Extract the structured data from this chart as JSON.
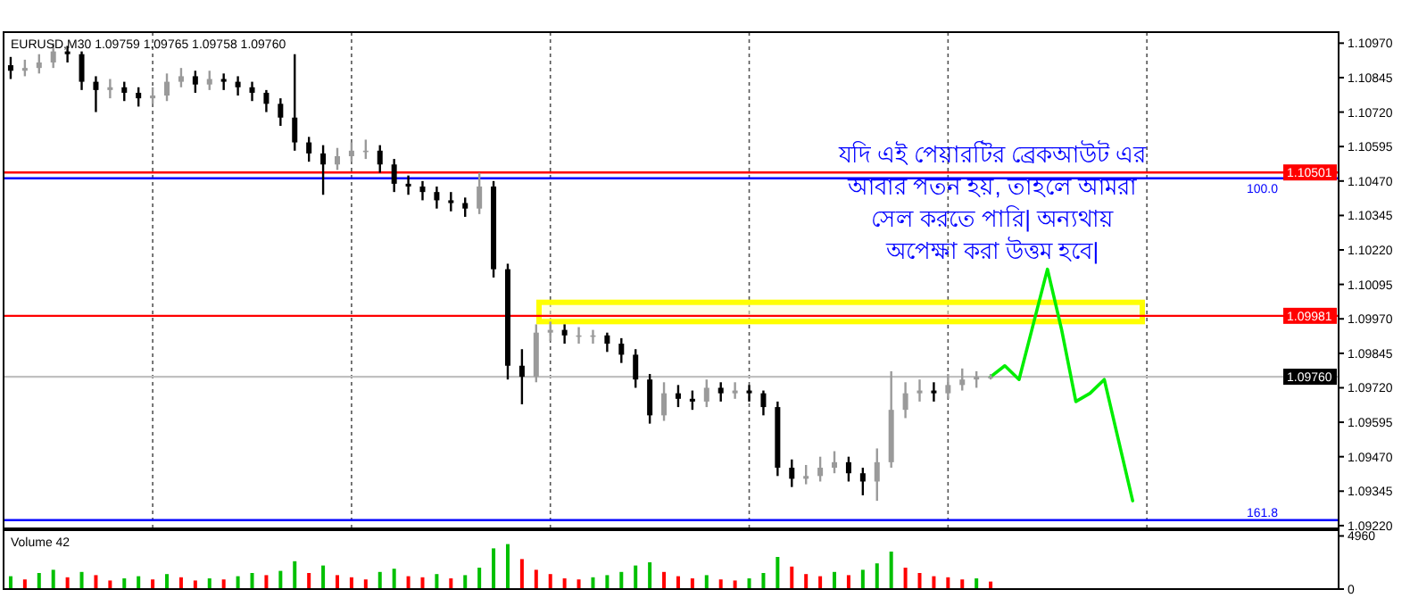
{
  "chart_data": [
    {
      "type": "candlestick",
      "title": "EURUSD,M30 1.09759 1.09765 1.09758 1.09760",
      "categories": [
        null,
        null,
        null,
        null,
        null,
        null,
        null,
        null,
        null,
        null,
        null,
        null,
        null,
        null,
        null,
        null,
        null,
        null,
        null,
        null,
        null,
        null,
        null,
        null,
        null,
        null,
        null,
        null,
        null,
        null,
        null,
        null,
        null,
        null,
        null,
        null,
        null,
        null,
        null,
        null,
        null,
        null,
        null,
        null,
        null,
        null,
        null,
        null,
        null,
        null,
        null,
        null,
        null,
        null,
        null,
        null,
        null,
        null,
        null,
        null,
        null,
        null,
        null,
        null,
        null,
        null,
        null,
        null,
        null,
        null,
        null,
        null,
        null,
        null,
        null,
        null,
        null,
        null,
        null,
        null,
        null,
        null,
        null,
        null,
        null,
        null,
        null,
        null,
        null,
        null,
        null,
        null,
        null,
        null
      ],
      "ohlc": [
        [
          1.1089,
          1.1092,
          1.1084,
          1.1087
        ],
        [
          1.1087,
          1.1091,
          1.1085,
          1.1088
        ],
        [
          1.1088,
          1.1093,
          1.1086,
          1.109
        ],
        [
          1.109,
          1.1097,
          1.1088,
          1.1094
        ],
        [
          1.1094,
          1.1096,
          1.109,
          1.1093
        ],
        [
          1.1093,
          1.1094,
          1.108,
          1.1083
        ],
        [
          1.1083,
          1.1085,
          1.1072,
          1.108
        ],
        [
          1.108,
          1.1084,
          1.1077,
          1.1081
        ],
        [
          1.1081,
          1.1083,
          1.1076,
          1.1079
        ],
        [
          1.1079,
          1.1081,
          1.1074,
          1.1077
        ],
        [
          1.1077,
          1.1081,
          1.1075,
          1.1078
        ],
        [
          1.1078,
          1.1086,
          1.1076,
          1.1083
        ],
        [
          1.1083,
          1.1088,
          1.1081,
          1.1085
        ],
        [
          1.1085,
          1.1087,
          1.1079,
          1.1082
        ],
        [
          1.1082,
          1.1087,
          1.108,
          1.1084
        ],
        [
          1.1084,
          1.1086,
          1.108,
          1.1083
        ],
        [
          1.1083,
          1.1085,
          1.1078,
          1.1081
        ],
        [
          1.1081,
          1.1083,
          1.1076,
          1.1079
        ],
        [
          1.1079,
          1.108,
          1.1072,
          1.1075
        ],
        [
          1.1075,
          1.1077,
          1.1067,
          1.107
        ],
        [
          1.107,
          1.1093,
          1.1058,
          1.1061
        ],
        [
          1.1061,
          1.1063,
          1.1054,
          1.1057
        ],
        [
          1.1057,
          1.106,
          1.1042,
          1.1053
        ],
        [
          1.1053,
          1.1059,
          1.1051,
          1.1056
        ],
        [
          1.1056,
          1.1061,
          1.1054,
          1.1058
        ],
        [
          1.1058,
          1.1062,
          1.1055,
          1.1058
        ],
        [
          1.1058,
          1.106,
          1.105,
          1.1053
        ],
        [
          1.1053,
          1.1055,
          1.1043,
          1.1046
        ],
        [
          1.1046,
          1.1049,
          1.1042,
          1.1045
        ],
        [
          1.1045,
          1.1047,
          1.104,
          1.1043
        ],
        [
          1.1043,
          1.1045,
          1.1037,
          1.104
        ],
        [
          1.104,
          1.1043,
          1.1036,
          1.1039
        ],
        [
          1.1039,
          1.1041,
          1.1034,
          1.1037
        ],
        [
          1.1037,
          1.105,
          1.1035,
          1.1045
        ],
        [
          1.1045,
          1.1047,
          1.1012,
          1.1015
        ],
        [
          1.1015,
          1.1017,
          1.0975,
          1.098
        ],
        [
          1.098,
          1.0986,
          1.0966,
          1.0976
        ],
        [
          1.0976,
          1.0995,
          1.0974,
          1.0992
        ],
        [
          1.0992,
          1.0996,
          1.0989,
          1.0993
        ],
        [
          1.0993,
          1.0995,
          1.0988,
          1.0991
        ],
        [
          1.0991,
          1.0994,
          1.0988,
          1.0991
        ],
        [
          1.0991,
          1.0993,
          1.0988,
          1.0991
        ],
        [
          1.0991,
          1.0992,
          1.0985,
          1.0988
        ],
        [
          1.0988,
          1.099,
          1.0981,
          1.0984
        ],
        [
          1.0984,
          1.0986,
          1.0972,
          1.0975
        ],
        [
          1.0975,
          1.0977,
          1.0959,
          1.0962
        ],
        [
          1.0962,
          1.0974,
          1.096,
          1.097
        ],
        [
          1.097,
          1.0973,
          1.0965,
          1.0968
        ],
        [
          1.0968,
          1.0971,
          1.0964,
          1.0967
        ],
        [
          1.0967,
          1.0975,
          1.0965,
          1.0972
        ],
        [
          1.0972,
          1.0974,
          1.0967,
          1.097
        ],
        [
          1.097,
          1.0974,
          1.0968,
          1.0971
        ],
        [
          1.0971,
          1.0973,
          1.0967,
          1.097
        ],
        [
          1.097,
          1.0971,
          1.0962,
          1.0965
        ],
        [
          1.0965,
          1.0967,
          1.094,
          1.0943
        ],
        [
          1.0943,
          1.0946,
          1.0936,
          1.0939
        ],
        [
          1.0939,
          1.0944,
          1.0937,
          1.094
        ],
        [
          1.094,
          1.0947,
          1.0938,
          1.0943
        ],
        [
          1.0943,
          1.0949,
          1.0941,
          1.0945
        ],
        [
          1.0945,
          1.0947,
          1.0938,
          1.0941
        ],
        [
          1.0941,
          1.0943,
          1.0933,
          1.0938
        ],
        [
          1.0938,
          1.095,
          1.0931,
          1.0945
        ],
        [
          1.0945,
          1.0978,
          1.0943,
          1.0964
        ],
        [
          1.0964,
          1.0974,
          1.0961,
          1.097
        ],
        [
          1.097,
          1.0975,
          1.0967,
          1.0971
        ],
        [
          1.0971,
          1.0974,
          1.0967,
          1.097
        ],
        [
          1.097,
          1.0977,
          1.0968,
          1.0973
        ],
        [
          1.0973,
          1.0979,
          1.0971,
          1.0975
        ],
        [
          1.0975,
          1.0978,
          1.0972,
          1.0976
        ],
        [
          1.0976,
          1.0977,
          1.0975,
          1.0976
        ],
        null,
        null,
        null,
        null,
        null,
        null,
        null,
        null,
        null,
        null,
        null,
        null,
        null,
        null,
        null,
        null,
        null,
        null,
        null,
        null,
        null,
        null,
        null,
        null
      ],
      "series": [
        {
          "type": "line",
          "color": "#00ee00",
          "values": [
            null,
            null,
            null,
            null,
            null,
            null,
            null,
            null,
            null,
            null,
            null,
            null,
            null,
            null,
            null,
            null,
            null,
            null,
            null,
            null,
            null,
            null,
            null,
            null,
            null,
            null,
            null,
            null,
            null,
            null,
            null,
            null,
            null,
            null,
            null,
            null,
            null,
            null,
            null,
            null,
            null,
            null,
            null,
            null,
            null,
            null,
            null,
            null,
            null,
            null,
            null,
            null,
            null,
            null,
            null,
            null,
            null,
            null,
            null,
            null,
            null,
            null,
            null,
            null,
            null,
            null,
            null,
            null,
            null,
            1.0976,
            1.098,
            1.0975,
            1.0995,
            1.1015,
            1.0993,
            1.0967,
            1.097,
            1.0975,
            1.0953,
            1.0931,
            null,
            null,
            null,
            null,
            null,
            null,
            null,
            null,
            null,
            null,
            null,
            null,
            null,
            null
          ]
        }
      ],
      "ylim": [
        1.0921,
        1.1101
      ],
      "yticks": [
        {
          "value": 1.1097,
          "label": "1.10970"
        },
        {
          "value": 1.10845,
          "label": "1.10845"
        },
        {
          "value": 1.1072,
          "label": "1.10720"
        },
        {
          "value": 1.10595,
          "label": "1.10595"
        },
        {
          "value": 1.1047,
          "label": "1.10470"
        },
        {
          "value": 1.10345,
          "label": "1.10345"
        },
        {
          "value": 1.1022,
          "label": "1.10220"
        },
        {
          "value": 1.10095,
          "label": "1.10095"
        },
        {
          "value": 1.0997,
          "label": "1.09970"
        },
        {
          "value": 1.09845,
          "label": "1.09845"
        },
        {
          "value": 1.0972,
          "label": "1.09720"
        },
        {
          "value": 1.09595,
          "label": "1.09595"
        },
        {
          "value": 1.0947,
          "label": "1.09470"
        },
        {
          "value": 1.09345,
          "label": "1.09345"
        },
        {
          "value": 1.0922,
          "label": "1.09220"
        }
      ],
      "tick_labels": "y",
      "grid": "x",
      "bands": [
        {
          "axis": "y",
          "from": 1.0996,
          "to": 1.1003,
          "color": "#ffff00"
        }
      ],
      "ref_lines": [
        {
          "axis": "y",
          "value": 1.10501,
          "label": "1.10501",
          "color": "#ff0000"
        },
        {
          "axis": "y",
          "value": 1.1048,
          "color": "#0000ff"
        },
        {
          "axis": "y",
          "value": 1.09981,
          "label": "1.09981",
          "color": "#ff0000"
        },
        {
          "axis": "y",
          "value": 1.0976,
          "label": "1.09760",
          "color": "#c0c0c0"
        },
        {
          "axis": "y",
          "value": 1.0924,
          "color": "#0000ff"
        }
      ],
      "annotations": [
        "যদি এই পেয়ারটির ব্রেকআউট এর\nআবার পতন হয়, তাহলে আমরা\nসেল করতে পারি| অন্যথায়\nঅপেক্ষা করা উত্তম হবে|",
        {
          "text": "100.0",
          "y": 1.1048
        },
        {
          "text": "161.8",
          "y": 1.0924
        }
      ]
    },
    {
      "type": "bar",
      "title": "Volume 42",
      "categories": [
        null,
        null,
        null,
        null,
        null,
        null,
        null,
        null,
        null,
        null,
        null,
        null,
        null,
        null,
        null,
        null,
        null,
        null,
        null,
        null,
        null,
        null,
        null,
        null,
        null,
        null,
        null,
        null,
        null,
        null,
        null,
        null,
        null,
        null,
        null,
        null,
        null,
        null,
        null,
        null,
        null,
        null,
        null,
        null,
        null,
        null,
        null,
        null,
        null,
        null,
        null,
        null,
        null,
        null,
        null,
        null,
        null,
        null,
        null,
        null,
        null,
        null,
        null,
        null,
        null,
        null,
        null,
        null,
        null,
        null,
        null,
        null,
        null,
        null,
        null,
        null,
        null,
        null,
        null,
        null,
        null,
        null,
        null,
        null,
        null,
        null,
        null,
        null,
        null,
        null,
        null,
        null,
        null,
        null
      ],
      "values": [
        1200,
        900,
        1500,
        1800,
        1100,
        1600,
        1300,
        800,
        1000,
        1200,
        900,
        1400,
        1100,
        800,
        1000,
        900,
        1200,
        1500,
        1300,
        1700,
        2600,
        1500,
        2200,
        1300,
        1100,
        900,
        1600,
        1900,
        1200,
        1100,
        1400,
        1000,
        1300,
        2000,
        3800,
        4200,
        2800,
        1800,
        1400,
        1000,
        900,
        1100,
        1300,
        1600,
        2200,
        2500,
        1600,
        1200,
        1000,
        1300,
        900,
        800,
        1000,
        1500,
        3000,
        2100,
        1400,
        1200,
        1600,
        1300,
        1800,
        2400,
        3500,
        2000,
        1500,
        1200,
        1100,
        900,
        1000,
        700,
        null,
        null,
        null,
        null,
        null,
        null,
        null,
        null,
        null,
        null,
        null,
        null,
        null,
        null,
        null,
        null,
        null,
        null,
        null,
        null,
        null,
        null,
        null,
        null
      ],
      "colors": [
        "#00c000",
        "#ff0000",
        "#00c000",
        "#00c000",
        "#ff0000",
        "#00c000",
        "#ff0000",
        "#ff0000",
        "#00c000",
        "#00c000",
        "#ff0000",
        "#00c000",
        "#ff0000",
        "#ff0000",
        "#00c000",
        "#ff0000",
        "#00c000",
        "#00c000",
        "#ff0000",
        "#00c000",
        "#00c000",
        "#ff0000",
        "#00c000",
        "#ff0000",
        "#ff0000",
        "#ff0000",
        "#00c000",
        "#00c000",
        "#ff0000",
        "#ff0000",
        "#00c000",
        "#ff0000",
        "#00c000",
        "#00c000",
        "#00c000",
        "#00c000",
        "#ff0000",
        "#ff0000",
        "#ff0000",
        "#ff0000",
        "#ff0000",
        "#00c000",
        "#00c000",
        "#00c000",
        "#00c000",
        "#00c000",
        "#ff0000",
        "#ff0000",
        "#ff0000",
        "#00c000",
        "#ff0000",
        "#ff0000",
        "#00c000",
        "#00c000",
        "#00c000",
        "#ff0000",
        "#ff0000",
        "#ff0000",
        "#00c000",
        "#ff0000",
        "#00c000",
        "#00c000",
        "#00c000",
        "#ff0000",
        "#ff0000",
        "#ff0000",
        "#ff0000",
        "#ff0000",
        "#00c000",
        "#ff0000",
        null,
        null,
        null,
        null,
        null,
        null,
        null,
        null,
        null,
        null,
        null,
        null,
        null,
        null,
        null,
        null,
        null,
        null,
        null,
        null,
        null,
        null,
        null,
        null
      ],
      "ylim": [
        0,
        5500
      ],
      "yticks": [
        0,
        4960
      ],
      "tick_labels": "y"
    }
  ]
}
